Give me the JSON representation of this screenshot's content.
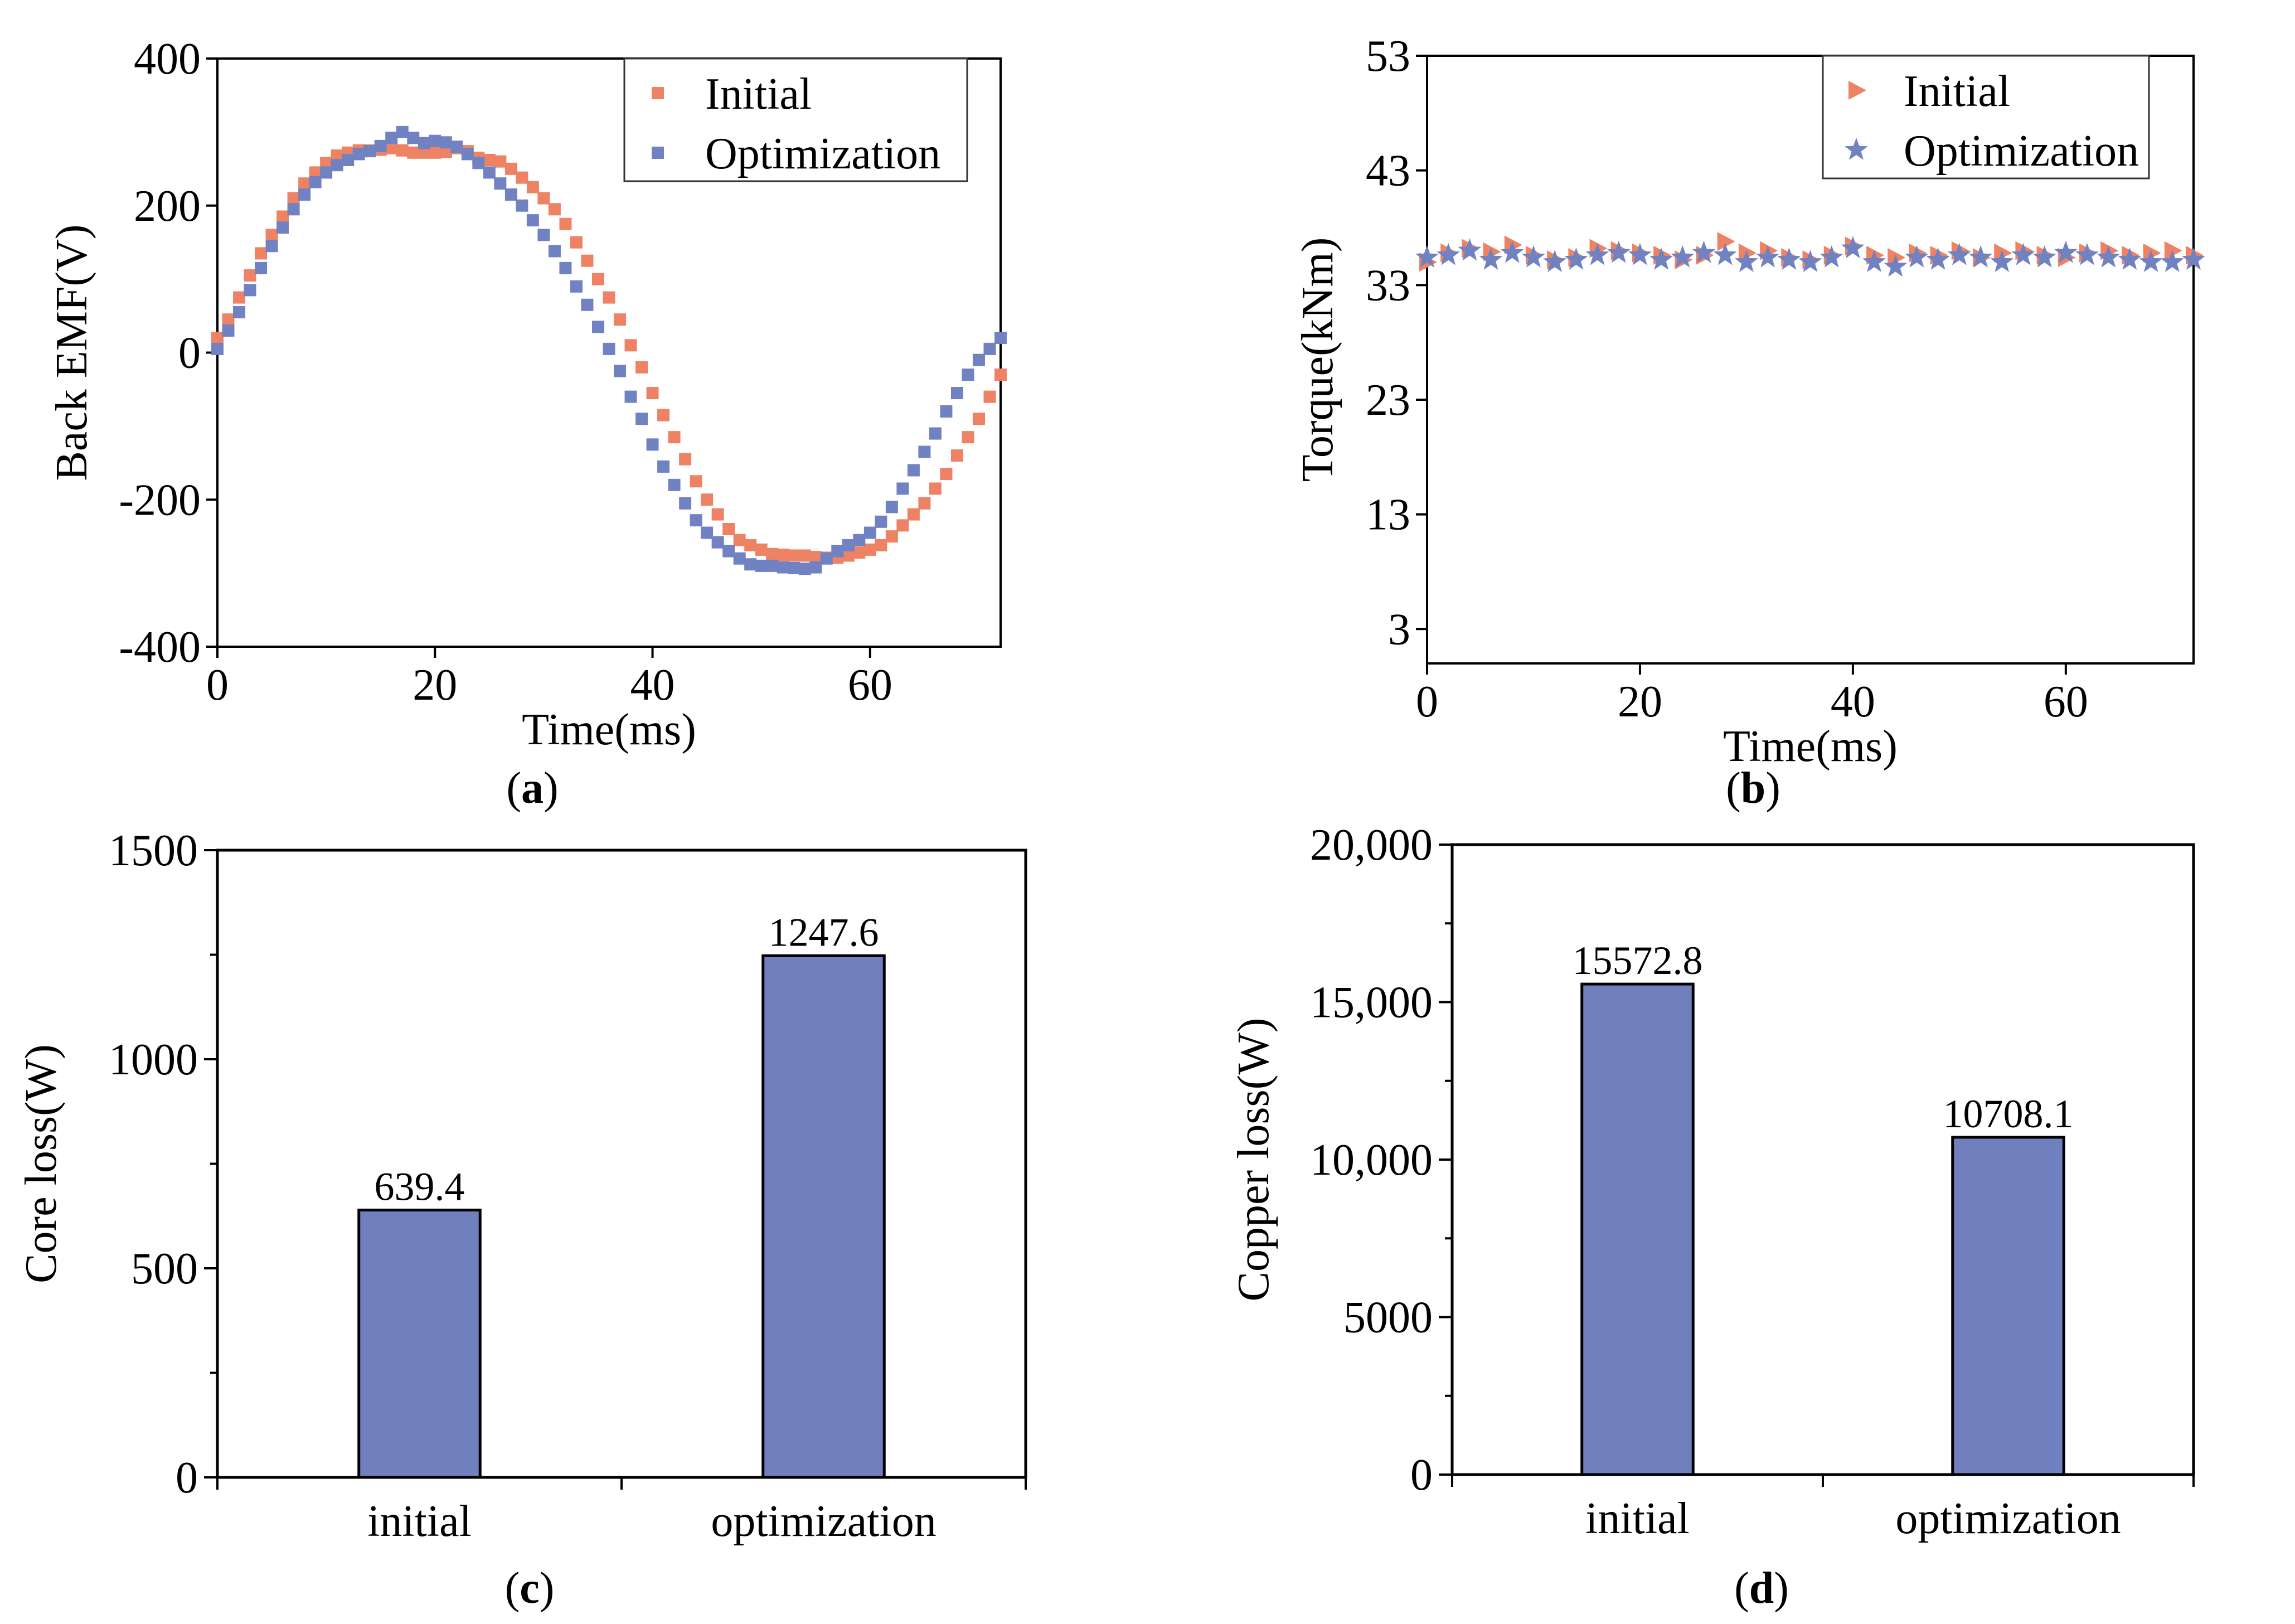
{
  "colors": {
    "initial": "#EE8264",
    "optimization": "#7082C2",
    "bar_fill": "#7080BF",
    "axis": "#000000"
  },
  "chart_data": [
    {
      "panel": "a",
      "panel_label": "a",
      "type": "scatter",
      "xlabel": "Time(ms)",
      "ylabel": "Back EMF(V)",
      "xlim": [
        0,
        72
      ],
      "ylim": [
        -400,
        400
      ],
      "xticks": [
        0,
        20,
        40,
        60
      ],
      "yticks": [
        -400,
        -200,
        0,
        200,
        400
      ],
      "legend_position": "top-right",
      "marker": "square",
      "series": [
        {
          "name": "Initial",
          "x": [
            0,
            1,
            2,
            3,
            4,
            5,
            6,
            7,
            8,
            9,
            10,
            11,
            12,
            13,
            14,
            15,
            16,
            17,
            18,
            19,
            20,
            21,
            22,
            23,
            24,
            25,
            26,
            27,
            28,
            29,
            30,
            31,
            32,
            33,
            34,
            35,
            36,
            37,
            38,
            39,
            40,
            41,
            42,
            43,
            44,
            45,
            46,
            47,
            48,
            49,
            50,
            51,
            52,
            53,
            54,
            55,
            56,
            57,
            58,
            59,
            60,
            61,
            62,
            63,
            64,
            65,
            66,
            67,
            68,
            69,
            70,
            71,
            72
          ],
          "y": [
            20,
            45,
            75,
            105,
            135,
            160,
            185,
            210,
            230,
            245,
            258,
            268,
            272,
            275,
            275,
            276,
            278,
            275,
            272,
            272,
            272,
            273,
            278,
            274,
            265,
            262,
            260,
            250,
            238,
            225,
            210,
            195,
            175,
            150,
            125,
            100,
            75,
            45,
            10,
            -20,
            -55,
            -85,
            -115,
            -145,
            -175,
            -200,
            -220,
            -240,
            -255,
            -262,
            -268,
            -274,
            -275,
            -276,
            -276,
            -278,
            -279,
            -279,
            -276,
            -272,
            -268,
            -262,
            -250,
            -235,
            -220,
            -205,
            -185,
            -165,
            -140,
            -115,
            -90,
            -60,
            -30
          ]
        },
        {
          "name": "Optimization",
          "x": [
            0,
            1,
            2,
            3,
            4,
            5,
            6,
            7,
            8,
            9,
            10,
            11,
            12,
            13,
            14,
            15,
            16,
            17,
            18,
            19,
            20,
            21,
            22,
            23,
            24,
            25,
            26,
            27,
            28,
            29,
            30,
            31,
            32,
            33,
            34,
            35,
            36,
            37,
            38,
            39,
            40,
            41,
            42,
            43,
            44,
            45,
            46,
            47,
            48,
            49,
            50,
            51,
            52,
            53,
            54,
            55,
            56,
            57,
            58,
            59,
            60,
            61,
            62,
            63,
            64,
            65,
            66,
            67,
            68,
            69,
            70,
            71,
            72
          ],
          "y": [
            5,
            30,
            55,
            85,
            115,
            145,
            170,
            195,
            215,
            232,
            245,
            255,
            262,
            270,
            274,
            281,
            292,
            300,
            292,
            285,
            288,
            286,
            280,
            270,
            258,
            245,
            230,
            215,
            200,
            180,
            160,
            138,
            115,
            90,
            65,
            35,
            5,
            -25,
            -60,
            -90,
            -125,
            -155,
            -180,
            -205,
            -228,
            -245,
            -258,
            -270,
            -280,
            -288,
            -290,
            -290,
            -292,
            -293,
            -294,
            -292,
            -280,
            -270,
            -262,
            -255,
            -245,
            -230,
            -210,
            -185,
            -160,
            -135,
            -110,
            -80,
            -55,
            -30,
            -10,
            5,
            20
          ]
        }
      ]
    },
    {
      "panel": "b",
      "panel_label": "b",
      "type": "scatter",
      "xlabel": "Time(ms)",
      "ylabel": "Torque(kNm)",
      "xlim": [
        0,
        72
      ],
      "ylim": [
        0,
        53
      ],
      "xticks": [
        0,
        20,
        40,
        60
      ],
      "yticks": [
        3,
        13,
        23,
        33,
        43,
        53
      ],
      "legend_position": "top-right",
      "series": [
        {
          "name": "Initial",
          "marker": "triangle-right",
          "x": [
            0,
            2,
            4,
            6,
            8,
            10,
            12,
            14,
            16,
            18,
            20,
            22,
            24,
            26,
            28,
            30,
            32,
            34,
            36,
            38,
            40,
            42,
            44,
            46,
            48,
            50,
            52,
            54,
            56,
            58,
            60,
            62,
            64,
            66,
            68,
            70,
            72
          ],
          "y": [
            35.0,
            35.8,
            36.2,
            35.9,
            36.5,
            35.6,
            35.2,
            35.4,
            36.2,
            36.0,
            35.8,
            35.6,
            35.2,
            35.6,
            36.8,
            35.8,
            36.0,
            35.4,
            35.2,
            35.6,
            36.4,
            35.6,
            35.4,
            35.8,
            35.6,
            36.0,
            35.4,
            35.8,
            36.0,
            35.6,
            35.4,
            35.8,
            36.0,
            35.6,
            35.8,
            36.0,
            35.6
          ]
        },
        {
          "name": "Optimization",
          "marker": "star",
          "x": [
            0,
            2,
            4,
            6,
            8,
            10,
            12,
            14,
            16,
            18,
            20,
            22,
            24,
            26,
            28,
            30,
            32,
            34,
            36,
            38,
            40,
            42,
            44,
            46,
            48,
            50,
            52,
            54,
            56,
            58,
            60,
            62,
            64,
            66,
            68,
            70,
            72
          ],
          "y": [
            35.4,
            35.6,
            36.0,
            35.2,
            35.8,
            35.4,
            35.0,
            35.2,
            35.6,
            35.8,
            35.6,
            35.2,
            35.4,
            35.8,
            35.6,
            35.0,
            35.4,
            35.2,
            35.0,
            35.4,
            36.2,
            35.0,
            34.6,
            35.4,
            35.2,
            35.6,
            35.4,
            35.0,
            35.6,
            35.4,
            35.8,
            35.6,
            35.4,
            35.2,
            35.0,
            35.0,
            35.2
          ]
        }
      ]
    },
    {
      "panel": "c",
      "panel_label": "c",
      "type": "bar",
      "xlabel": "",
      "ylabel": "Core loss(W)",
      "categories": [
        "initial",
        "optimization"
      ],
      "values": [
        639.4,
        1247.6
      ],
      "value_labels": [
        "639.4",
        "1247.6"
      ],
      "ylim": [
        0,
        1500
      ],
      "yticks": [
        0,
        500,
        1000,
        1500
      ],
      "ytick_labels": [
        "0",
        "500",
        "1000",
        "1500"
      ]
    },
    {
      "panel": "d",
      "panel_label": "d",
      "type": "bar",
      "xlabel": "",
      "ylabel": "Copper loss(W)",
      "categories": [
        "initial",
        "optimization"
      ],
      "values": [
        15572.8,
        10708.1
      ],
      "value_labels": [
        "15572.8",
        "10708.1"
      ],
      "ylim": [
        0,
        20000
      ],
      "yticks": [
        0,
        5000,
        10000,
        15000,
        20000
      ],
      "ytick_labels": [
        "0",
        "5000",
        "10,000",
        "15,000",
        "20,000"
      ]
    }
  ]
}
